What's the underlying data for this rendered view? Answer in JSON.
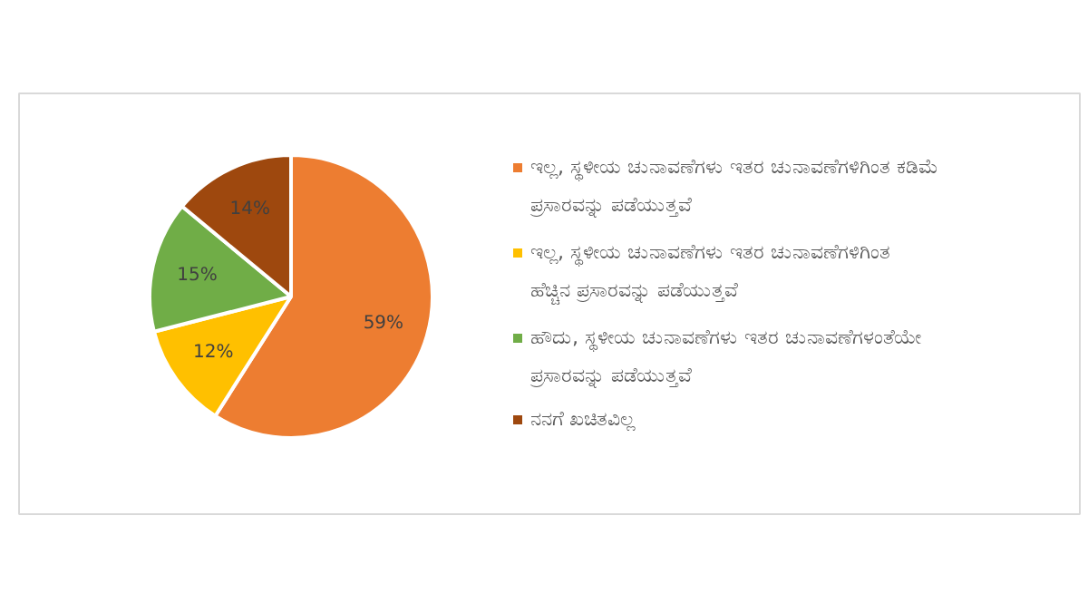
{
  "chart_data": {
    "type": "pie",
    "categories": [
      "ಇಲ್ಲ, ಸ್ಥಳೀಯ ಚುನಾವಣೆಗಳು ಇತರ ಚುನಾವಣೆಗಳಿಗಿಂತ ಕಡಿಮೆ ಪ್ರಸಾರವನ್ನು ಪಡೆಯುತ್ತವೆ",
      "ಇಲ್ಲ, ಸ್ಥಳೀಯ ಚುನಾವಣೆಗಳು ಇತರ ಚುನಾವಣೆಗಳಿಗಿಂತ ಹೆಚ್ಚಿನ ಪ್ರಸಾರವನ್ನು ಪಡೆಯುತ್ತವೆ",
      "ಹೌದು, ಸ್ಥಳೀಯ ಚುನಾವಣೆಗಳು ಇತರ ಚುನಾವಣೆಗಳಂತೆಯೇ ಪ್ರಸಾರವನ್ನು ಪಡೆಯುತ್ತವೆ",
      "ನನಗೆ ಖಚಿತವಿಲ್ಲ"
    ],
    "values": [
      59,
      12,
      15,
      14
    ],
    "colors": [
      "#ed7d31",
      "#ffc000",
      "#70ad47",
      "#9e480e"
    ],
    "value_labels": [
      "59%",
      "12%",
      "15%",
      "14%"
    ],
    "legend": "right"
  }
}
